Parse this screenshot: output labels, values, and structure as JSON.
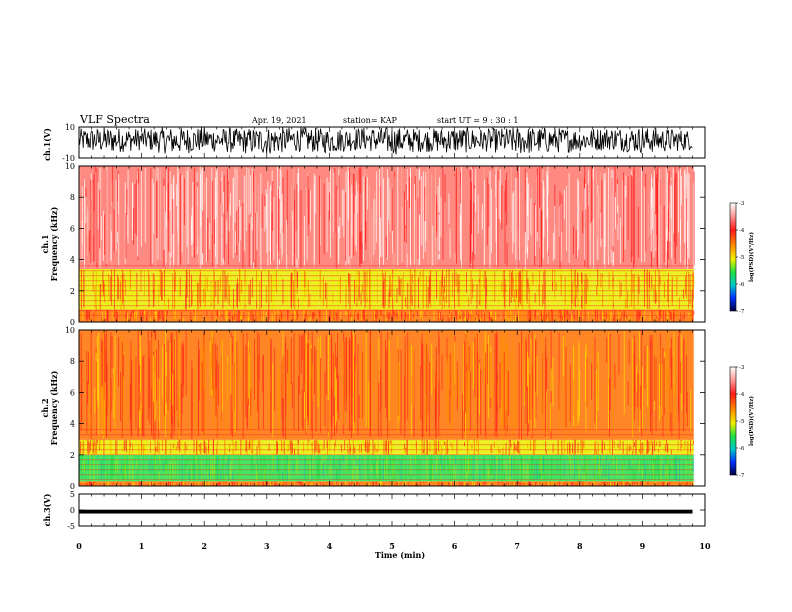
{
  "header": {
    "title": "VLF Spectra",
    "date": "Apr. 19, 2021",
    "station": "station= KAP",
    "start": "start  UT =   9  : 30 : 1"
  },
  "colors": {
    "spec_high": "#ff2a1a",
    "spec_mid": "#e8f000",
    "spec_low": "#27e04a",
    "background": "#ffffff",
    "trace": "#000000"
  },
  "chart_data": [
    {
      "type": "line",
      "name": "ch1-waveform",
      "ylabel": "ch.1(V)",
      "ylim": [
        -10,
        10
      ],
      "yticks": [
        "10",
        "-10"
      ],
      "x": [
        0,
        0.5,
        1,
        1.5,
        2,
        2.5,
        3,
        3.5,
        4,
        4.5,
        5,
        5.5,
        6,
        6.5,
        7,
        7.5,
        8,
        8.5,
        9,
        9.5,
        9.8
      ],
      "y_min": [
        -6,
        -7,
        -5,
        -8,
        -6,
        -7,
        -8,
        -6,
        -7,
        -5,
        -8,
        -6,
        -7,
        -6,
        -8,
        -7,
        -6,
        -5,
        -7,
        -6,
        -5
      ],
      "y_max": [
        9,
        10,
        9,
        10,
        10,
        9,
        10,
        10,
        9,
        10,
        10,
        9,
        10,
        9,
        10,
        10,
        9,
        10,
        10,
        9,
        8
      ]
    },
    {
      "type": "heatmap",
      "name": "ch1-spectrogram",
      "ylabel": "ch.1\nFrequency (kHz)",
      "ylim": [
        0,
        10
      ],
      "yticks": [
        "0",
        "2",
        "4",
        "6",
        "8",
        "10"
      ],
      "xlim": [
        0,
        10
      ],
      "bands": [
        {
          "f_from": 0,
          "f_to": 0.8,
          "level": -3.5
        },
        {
          "f_from": 0.8,
          "f_to": 3.4,
          "level": -4.5
        },
        {
          "f_from": 3.4,
          "f_to": 10,
          "level": -3.2
        }
      ],
      "colorbar": {
        "ticks": [
          "-3",
          "-4",
          "-5",
          "-6",
          "-7"
        ],
        "label": "log(PSD)(V²/Hz)"
      }
    },
    {
      "type": "heatmap",
      "name": "ch2-spectrogram",
      "ylabel": "ch.2\nFrequency (kHz)",
      "ylim": [
        0,
        10
      ],
      "yticks": [
        "0",
        "2",
        "4",
        "6",
        "8",
        "10"
      ],
      "xlim": [
        0,
        10
      ],
      "bands": [
        {
          "f_from": 0,
          "f_to": 0.3,
          "level": -3.8
        },
        {
          "f_from": 0.3,
          "f_to": 2.0,
          "level": -5.0
        },
        {
          "f_from": 2.0,
          "f_to": 3.0,
          "level": -4.5
        },
        {
          "f_from": 3.0,
          "f_to": 10,
          "level": -3.5
        }
      ],
      "colorbar": {
        "ticks": [
          "-3",
          "-4",
          "-5",
          "-6",
          "-7"
        ],
        "label": "log(PSD)(V²/Hz)"
      }
    },
    {
      "type": "line",
      "name": "ch3-waveform",
      "ylabel": "ch.3(V)",
      "ylim": [
        -5,
        5
      ],
      "yticks": [
        "5",
        "0",
        "-5"
      ],
      "x": [
        0,
        9.8
      ],
      "y_center": -0.5,
      "y_halfwidth": 0.6
    }
  ],
  "xaxis": {
    "label": "Time (min)",
    "ticks": [
      "0",
      "1",
      "2",
      "3",
      "4",
      "5",
      "6",
      "7",
      "8",
      "9",
      "10"
    ],
    "range": [
      0,
      10
    ]
  }
}
